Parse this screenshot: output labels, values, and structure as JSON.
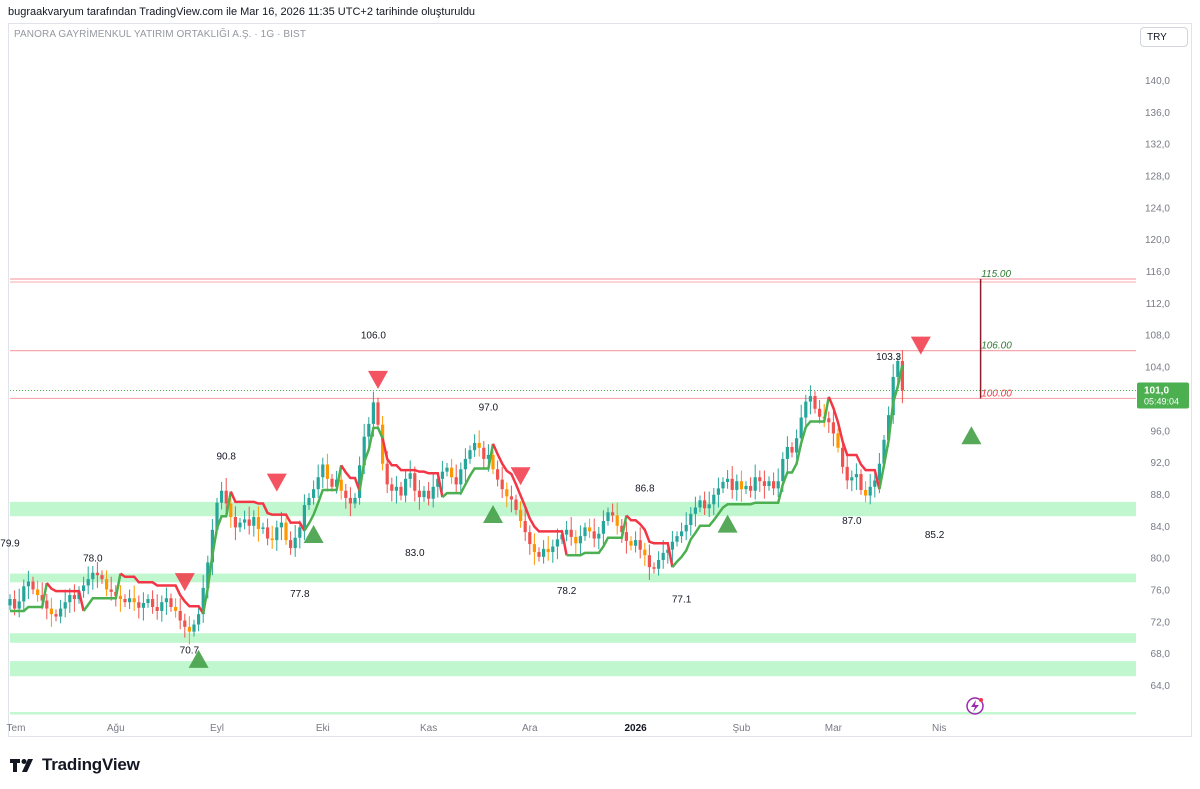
{
  "header": {
    "author_line": "bugraakvaryum tarafından TradingView.com ile Mar 16, 2026 11:35 UTC+2 tarihinde oluşturuldu"
  },
  "chart_title": "PANORA GAYRİMENKUL YATIRIM ORTAKLIĞI A.Ş. · 1G · BIST",
  "currency": "TRY",
  "brand": {
    "name": "TradingView",
    "icon": "tradingview-logo-icon"
  },
  "chart_data": {
    "type": "candlestick",
    "x_axis": {
      "labels": [
        "Tem",
        "Ağu",
        "Eyl",
        "Eki",
        "Kas",
        "Ara",
        "2026",
        "Şub",
        "Mar",
        "Nis"
      ],
      "label_positions": [
        0,
        23,
        45,
        68,
        91,
        113,
        136,
        159,
        179,
        202
      ]
    },
    "y_axis": {
      "ticks": [
        "64,0",
        "68,0",
        "72,0",
        "76,0",
        "80,0",
        "84,0",
        "88,0",
        "92,0",
        "96,0",
        "100,0",
        "104,0",
        "108,0",
        "112,0",
        "116,0",
        "120,0",
        "124,0",
        "128,0",
        "132,0",
        "136,0",
        "140,0"
      ],
      "range": [
        60,
        145
      ],
      "position": "right",
      "grid": false
    },
    "candles_close": [
      74.8,
      73.6,
      74.5,
      76.4,
      77.0,
      76.0,
      75.3,
      74.6,
      73.6,
      72.9,
      72.6,
      73.6,
      74.4,
      75.3,
      74.8,
      75.8,
      76.5,
      77.3,
      78.1,
      77.8,
      77.3,
      76.0,
      75.7,
      75.2,
      74.8,
      74.4,
      74.9,
      74.4,
      73.7,
      74.3,
      74.8,
      73.8,
      73.3,
      74.4,
      74.9,
      73.8,
      73.3,
      72.1,
      71.3,
      70.7,
      71.6,
      72.9,
      76.2,
      79.4,
      83.5,
      86.9,
      88.4,
      86.8,
      85.1,
      83.8,
      84.4,
      84.8,
      84.0,
      85.1,
      83.6,
      83.8,
      82.4,
      82.2,
      83.8,
      84.4,
      82.2,
      81.2,
      82.5,
      83.8,
      86.6,
      87.5,
      88.6,
      90.1,
      91.7,
      89.9,
      88.9,
      89.8,
      88.4,
      87.5,
      86.8,
      87.5,
      91.6,
      95.2,
      96.8,
      99.5,
      96.7,
      91.8,
      89.2,
      88.4,
      88.9,
      87.8,
      89.9,
      90.6,
      88.4,
      87.6,
      88.4,
      87.4,
      88.9,
      89.9,
      90.8,
      91.3,
      90.1,
      89.2,
      91.1,
      92.4,
      93.5,
      94.4,
      93.8,
      92.4,
      92.9,
      91.1,
      89.8,
      88.6,
      87.7,
      87.3,
      86.0,
      84.6,
      83.2,
      81.7,
      80.7,
      80.1,
      81.1,
      80.7,
      81.4,
      82.3,
      82.9,
      83.5,
      82.6,
      81.8,
      82.7,
      83.8,
      83.3,
      82.4,
      83.0,
      84.6,
      85.7,
      85.3,
      84.0,
      83.2,
      82.1,
      81.5,
      82.2,
      81.0,
      80.3,
      78.8,
      78.6,
      79.7,
      80.6,
      81.0,
      82.0,
      82.7,
      83.3,
      84.1,
      85.5,
      86.3,
      87.2,
      86.2,
      86.7,
      87.9,
      88.7,
      89.5,
      89.9,
      88.5,
      89.6,
      88.6,
      89.0,
      88.4,
      90.1,
      89.6,
      89.0,
      89.6,
      88.7,
      89.6,
      92.4,
      93.9,
      93.2,
      95.0,
      97.6,
      99.6,
      100.3,
      98.7,
      97.7,
      97.5,
      97.0,
      95.6,
      93.8,
      91.4,
      89.7,
      90.1,
      90.5,
      88.5,
      87.8,
      88.9,
      89.7,
      91.8,
      94.8,
      97.9,
      102.7,
      104.7,
      101.0
    ],
    "candle_highs_note": "",
    "price_labels": [
      {
        "text": "79.9",
        "x": 0,
        "price": 79.9
      },
      {
        "text": "78.0",
        "x": 18,
        "price": 78.0
      },
      {
        "text": "70.7",
        "x": 39,
        "price": 70.7
      },
      {
        "text": "90.8",
        "x": 47,
        "price": 90.8
      },
      {
        "text": "77.8",
        "x": 63,
        "price": 77.8
      },
      {
        "text": "106.0",
        "x": 79,
        "price": 106.0
      },
      {
        "text": "83.0",
        "x": 88,
        "price": 83.0
      },
      {
        "text": "97.0",
        "x": 104,
        "price": 97.0
      },
      {
        "text": "78.2",
        "x": 121,
        "price": 78.2
      },
      {
        "text": "86.8",
        "x": 138,
        "price": 86.8
      },
      {
        "text": "77.1",
        "x": 146,
        "price": 77.1
      },
      {
        "text": "87.0",
        "x": 183,
        "price": 87.0
      },
      {
        "text": "103.3",
        "x": 191,
        "price": 103.3
      },
      {
        "text": "85.2",
        "x": 201,
        "price": 85.2
      }
    ],
    "support_zones": [
      {
        "from": 85.2,
        "to": 87.0
      },
      {
        "from": 76.9,
        "to": 78.0
      },
      {
        "from": 69.3,
        "to": 70.5
      },
      {
        "from": 65.1,
        "to": 67.0
      },
      {
        "from": 60.3,
        "to": 60.6
      }
    ],
    "horizontal_levels": [
      {
        "price": 115.0,
        "label": "115.00",
        "label_color": "#2e7d32"
      },
      {
        "price": 106.0,
        "label": "106.00",
        "label_color": "#2e7d32"
      },
      {
        "price": 100.0,
        "label": "100.00",
        "label_color": "#f23645"
      }
    ],
    "current_price": {
      "value": "101,0",
      "countdown": "05:49:04",
      "price": 101.0,
      "color": "#4caf50"
    },
    "signals": [
      {
        "type": "sell",
        "x": 38
      },
      {
        "type": "buy",
        "x": 41
      },
      {
        "type": "sell",
        "x": 58
      },
      {
        "type": "buy",
        "x": 66
      },
      {
        "type": "sell",
        "x": 80
      },
      {
        "type": "buy",
        "x": 105
      },
      {
        "type": "sell",
        "x": 111
      },
      {
        "type": "buy",
        "x": 156
      },
      {
        "type": "sell",
        "x": 198
      },
      {
        "type": "buy",
        "x": 209
      }
    ],
    "projection": {
      "x": 211,
      "from": 100.0,
      "to": 115.0
    }
  },
  "colors": {
    "up_candle": "#26a69a",
    "down_candle": "#ef5350",
    "orange_candle": "#ff9800",
    "trend_up": "#4caf50",
    "trend_down": "#f23645",
    "zone_fill": "#b9f6ca",
    "level_line": "#f7a8ae"
  }
}
